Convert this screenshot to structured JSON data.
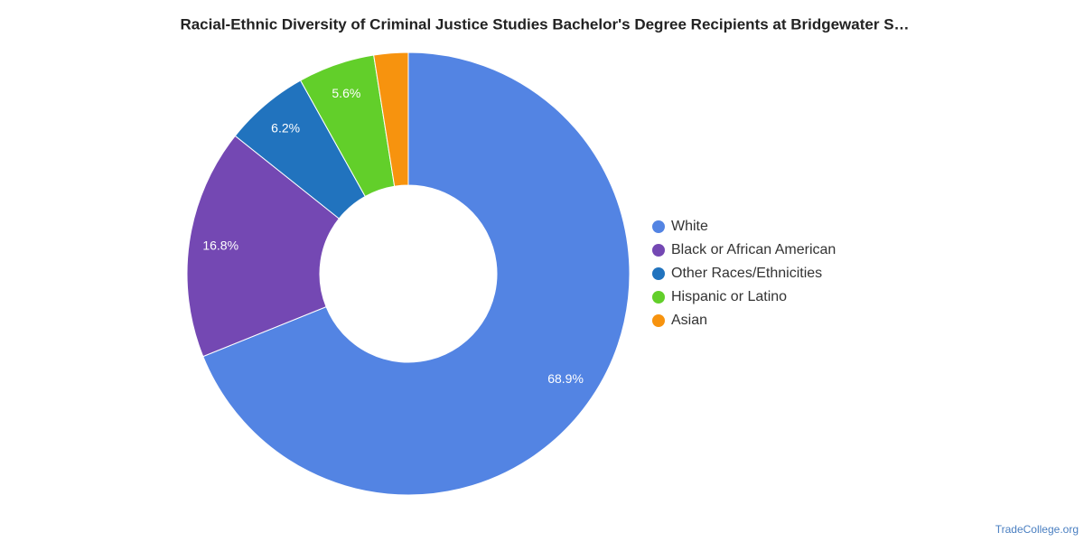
{
  "chart_data": {
    "type": "donut",
    "title": "Racial-Ethnic Diversity of Criminal Justice Studies Bachelor's Degree Recipients at Bridgewater S…",
    "categories": [
      "White",
      "Black or African American",
      "Other Races/Ethnicities",
      "Hispanic or Latino",
      "Asian"
    ],
    "values": [
      68.9,
      16.8,
      6.2,
      5.6,
      2.5
    ],
    "value_labels": [
      "68.9%",
      "16.8%",
      "6.2%",
      "5.6%",
      null
    ],
    "colors": [
      "#5384e3",
      "#7448b3",
      "#2173be",
      "#62cf2a",
      "#f7930e"
    ],
    "legend": "right",
    "source": "TradeCollege.org"
  }
}
